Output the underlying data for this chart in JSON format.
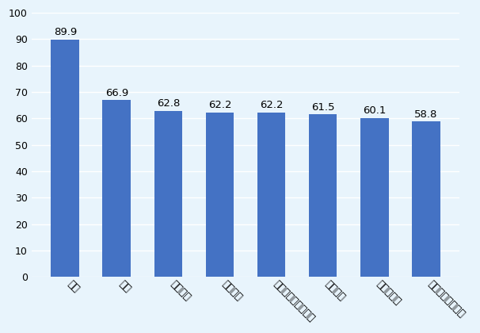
{
  "categories": [
    "昇給",
    "昇格",
    "有給休暇",
    "医療保険",
    "社内イベントの実施",
    "表彰制度",
    "食堂の充実",
    "通勤車・バス手配"
  ],
  "values": [
    89.9,
    66.9,
    62.8,
    62.2,
    62.2,
    61.5,
    60.1,
    58.8
  ],
  "bar_color": "#4472C4",
  "background_color": "#E8F4FC",
  "grid_color": "#FFFFFF",
  "ylim": [
    0,
    100
  ],
  "yticks": [
    0,
    10,
    20,
    30,
    40,
    50,
    60,
    70,
    80,
    90,
    100
  ],
  "value_fontsize": 9.5,
  "tick_fontsize": 9,
  "label_fontsize": 9,
  "bar_width": 0.55,
  "label_rotation": -45,
  "label_ha": "left"
}
